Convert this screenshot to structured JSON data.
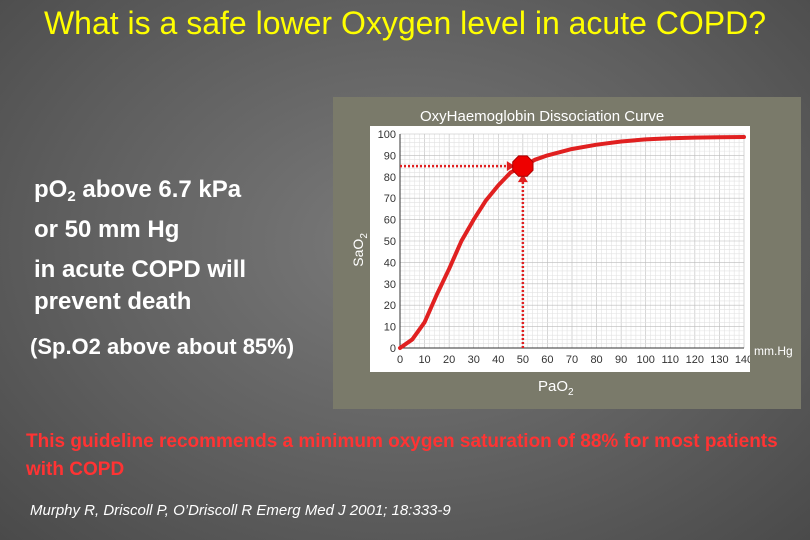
{
  "title": "What is a safe lower Oxygen level in acute COPD?",
  "left_text": {
    "line1_pre": "p",
    "line1_sub_o": "O",
    "line1_sub": "2",
    "line1_post": " above 6.7 kPa",
    "line2": "or 50 mm Hg",
    "line3": "in acute COPD will",
    "line4": "prevent death",
    "line5": "(Sp.O2 above about 85%)"
  },
  "guideline": "This guideline recommends a minimum oxygen saturation of 88% for most patients with COPD",
  "reference": "Murphy R, Driscoll P, O’Driscoll R Emerg Med J 2001; 18:333-9",
  "colors": {
    "title": "#ffff00",
    "curve": "#e02020",
    "guideline": "#ff3333"
  },
  "chart_data": {
    "type": "line",
    "title": "OxyHaemoglobin Dissociation Curve",
    "ylabel_main": "SaO",
    "ylabel_sub": "2",
    "xlabel_main": "PaO",
    "xlabel_sub": "2",
    "x_unit": "mm.Hg",
    "xlim": [
      0,
      140
    ],
    "ylim": [
      0,
      100
    ],
    "x_ticks": [
      0,
      10,
      20,
      30,
      40,
      50,
      60,
      70,
      80,
      90,
      100,
      110,
      120,
      130,
      140
    ],
    "y_ticks": [
      0,
      10,
      20,
      30,
      40,
      50,
      60,
      70,
      80,
      90,
      100
    ],
    "grid": true,
    "series": [
      {
        "x": [
          0,
          5,
          10,
          15,
          20,
          25,
          30,
          35,
          40,
          45,
          50,
          55,
          60,
          70,
          80,
          90,
          100,
          110,
          120,
          130,
          140
        ],
        "y": [
          0,
          4,
          12,
          25,
          37,
          50,
          60,
          69,
          76,
          82,
          85,
          88,
          90,
          93,
          95,
          96.5,
          97.5,
          98,
          98.3,
          98.5,
          98.6
        ]
      }
    ],
    "marker": {
      "x": 50,
      "y": 85
    }
  }
}
